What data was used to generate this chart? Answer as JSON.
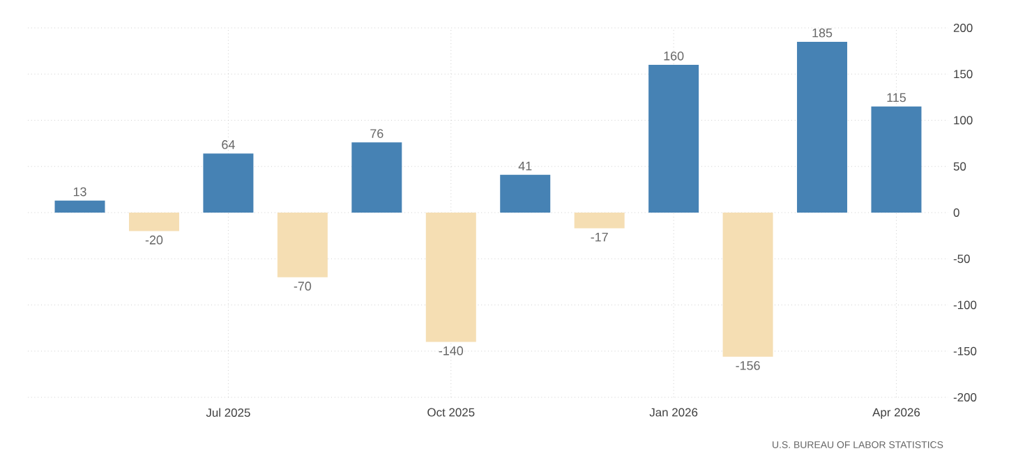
{
  "chart_data": {
    "type": "bar",
    "categories": [
      null,
      null,
      "Jul 2025",
      null,
      null,
      "Oct 2025",
      null,
      null,
      "Jan 2026",
      null,
      null,
      "Apr 2026"
    ],
    "values": [
      13,
      -20,
      64,
      -70,
      76,
      -140,
      41,
      -17,
      160,
      -156,
      185,
      115
    ],
    "colors": [
      "#4682b4",
      "#f5deb3",
      "#4682b4",
      "#f5deb3",
      "#4682b4",
      "#f5deb3",
      "#4682b4",
      "#f5deb3",
      "#4682b4",
      "#f5deb3",
      "#4682b4",
      "#4682b4"
    ],
    "ylim": [
      -200,
      200
    ],
    "yticks": [
      -200,
      -150,
      -100,
      -50,
      0,
      50,
      100,
      150,
      200
    ],
    "grid": true,
    "data_labels": true,
    "annotations": [
      "U.S. BUREAU OF LABOR STATISTICS"
    ]
  }
}
